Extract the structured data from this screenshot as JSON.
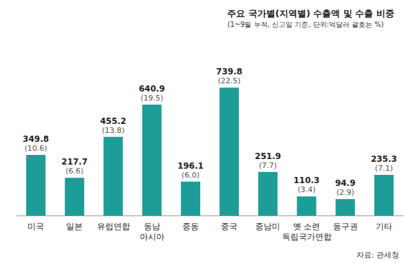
{
  "chart_data": {
    "type": "bar",
    "title": "주요 국가별(지역별) 수출액 및 수출 비중",
    "subtitle": "(1~9월 누적, 신고일 기준, 단위:억달러 괄호는 %)",
    "source": "자료: 관세청",
    "categories": [
      "미국",
      "일본",
      "유럽연합",
      "동남\n아시아",
      "중동",
      "중국",
      "중남미",
      "옛 소련\n독립국가연합",
      "동구권",
      "기타"
    ],
    "values": [
      349.8,
      217.7,
      455.2,
      640.9,
      196.1,
      739.8,
      251.9,
      110.3,
      94.9,
      235.3
    ],
    "value_labels": [
      "349.8\n(10.6)",
      "217.7\n(6.6)",
      "455.2\n(13.8)",
      "640.9\n(19.5)",
      "196.1\n(6.0)",
      "739.8\n(22.5)",
      "251.9\n(7.7)",
      "110.3\n(3.4)",
      "94.9\n(2.9)",
      "235.3\n(7.1)"
    ],
    "color": "#1e9c97",
    "ylim": [
      0,
      800
    ],
    "grid": false,
    "data_labels": true,
    "tick_labels": "x"
  }
}
